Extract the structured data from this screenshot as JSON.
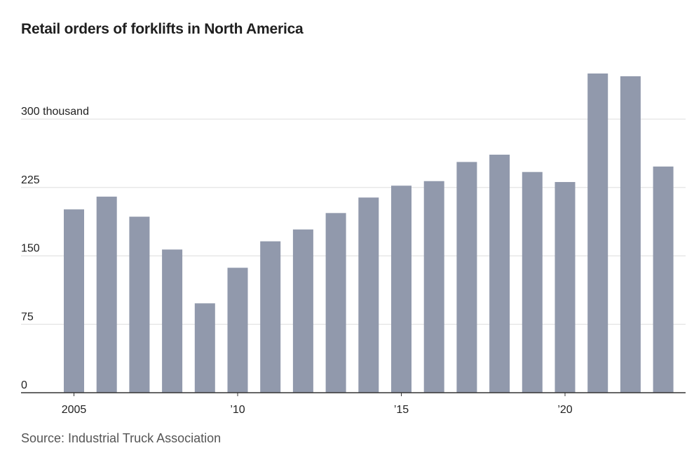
{
  "chart_data": {
    "type": "bar",
    "title": "Retail orders of forklifts in North America",
    "source": "Source: Industrial Truck Association",
    "x": [
      2005,
      2006,
      2007,
      2008,
      2009,
      2010,
      2011,
      2012,
      2013,
      2014,
      2015,
      2016,
      2017,
      2018,
      2019,
      2020,
      2021,
      2022,
      2023
    ],
    "values": [
      201,
      215,
      193,
      157,
      98,
      137,
      166,
      179,
      197,
      214,
      227,
      232,
      253,
      261,
      242,
      231,
      350,
      347,
      248
    ],
    "unit": "thousand",
    "ylim": [
      0,
      350
    ],
    "y_ticks": [
      0,
      75,
      150,
      225,
      300
    ],
    "y_tick_labels": [
      "0",
      "75",
      "150",
      "225",
      "300 thousand"
    ],
    "x_ticks": [
      2005,
      2010,
      2015,
      2020
    ],
    "x_tick_labels": [
      "2005",
      "’10",
      "’15",
      "’20"
    ],
    "grid": true,
    "bar_color": "#9199ac",
    "grid_color": "#dddddd",
    "axis_color": "#333333"
  }
}
